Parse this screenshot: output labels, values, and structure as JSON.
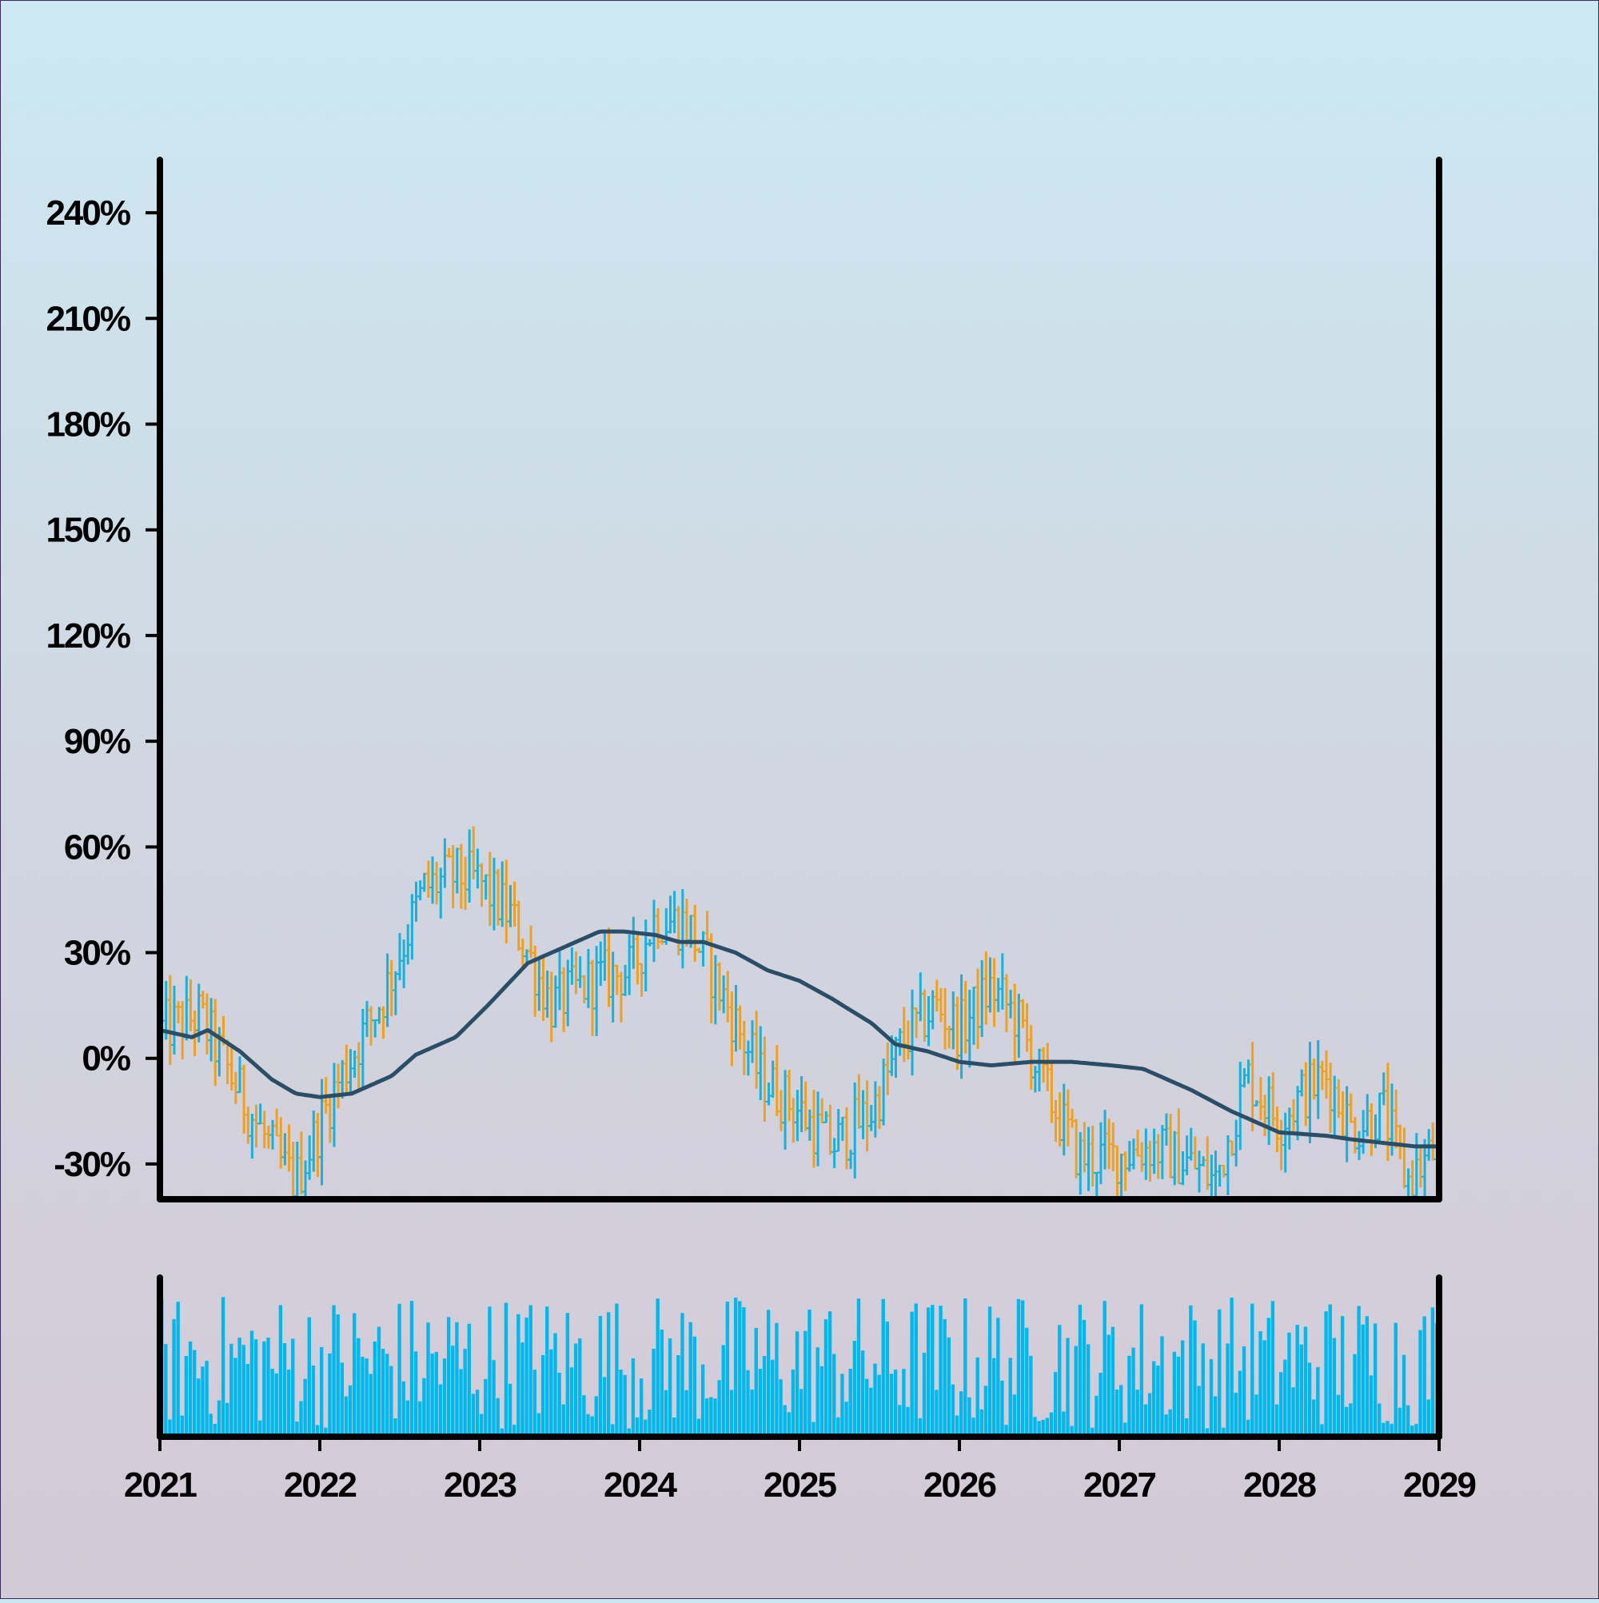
{
  "chart_data": {
    "type": "ohlc",
    "subtype": "ohlc-bars with moving average and volume",
    "title": "",
    "xlabel": "",
    "ylabel": "",
    "ylim": [
      -40,
      255
    ],
    "y_ticks": [
      -30,
      0,
      30,
      60,
      90,
      120,
      150,
      180,
      210,
      240
    ],
    "y_tick_labels": [
      "-30%",
      "0%",
      "30%",
      "60%",
      "90%",
      "120%",
      "150%",
      "180%",
      "210%",
      "240%"
    ],
    "xlim": [
      2021,
      2029
    ],
    "x_ticks": [
      2021,
      2022,
      2023,
      2024,
      2025,
      2026,
      2027,
      2028,
      2029
    ],
    "x_tick_labels": [
      "2021",
      "2022",
      "2023",
      "2024",
      "2025",
      "2026",
      "2027",
      "2028",
      "2029"
    ],
    "grid": false,
    "legend": "none",
    "colors": {
      "up": "#1ab0dc",
      "down": "#f0a020",
      "moving_average": "#2a4e68",
      "volume": "#00b8ec",
      "axis": "#000000"
    },
    "price_path_keypoints": {
      "x": [
        2021.0,
        2021.25,
        2021.5,
        2021.75,
        2021.85,
        2022.1,
        2022.4,
        2022.65,
        2022.85,
        2023.0,
        2023.2,
        2023.45,
        2023.7,
        2023.95,
        2024.1,
        2024.3,
        2024.55,
        2024.75,
        2025.0,
        2025.2,
        2025.45,
        2025.65,
        2025.85,
        2026.0,
        2026.2,
        2026.35,
        2026.55,
        2026.75,
        2026.95,
        2027.2,
        2027.45,
        2027.6,
        2027.8,
        2028.0,
        2028.15,
        2028.3,
        2028.45,
        2028.65,
        2028.8,
        2029.0
      ],
      "y": [
        8,
        12,
        -10,
        -30,
        -35,
        -8,
        18,
        48,
        52,
        50,
        40,
        15,
        22,
        25,
        40,
        38,
        15,
        -5,
        -15,
        -25,
        -15,
        5,
        15,
        8,
        20,
        12,
        -10,
        -28,
        -28,
        -25,
        -30,
        -35,
        -5,
        -18,
        -10,
        -5,
        -20,
        -15,
        -35,
        -25
      ]
    },
    "moving_average_keypoints": {
      "x": [
        2021.0,
        2021.1,
        2021.2,
        2021.3,
        2021.5,
        2021.7,
        2021.85,
        2022.0,
        2022.2,
        2022.45,
        2022.6,
        2022.85,
        2023.05,
        2023.3,
        2023.5,
        2023.75,
        2023.9,
        2024.1,
        2024.25,
        2024.4,
        2024.6,
        2024.8,
        2025.0,
        2025.2,
        2025.45,
        2025.6,
        2025.8,
        2026.0,
        2026.2,
        2026.45,
        2026.7,
        2026.95,
        2027.15,
        2027.45,
        2027.7,
        2028.0,
        2028.3,
        2028.45,
        2028.65,
        2028.85,
        2029.0
      ],
      "y": [
        8,
        7,
        6,
        8,
        2,
        -6,
        -10,
        -11,
        -10,
        -5,
        1,
        6,
        15,
        27,
        31,
        36,
        36,
        35,
        33,
        33,
        30,
        25,
        22,
        17,
        10,
        4,
        2,
        -1,
        -2,
        -1,
        -1,
        -2,
        -3,
        -9,
        -15,
        -21,
        -22,
        -23,
        -24,
        -25,
        -25
      ]
    },
    "volume_y_max": 100
  }
}
